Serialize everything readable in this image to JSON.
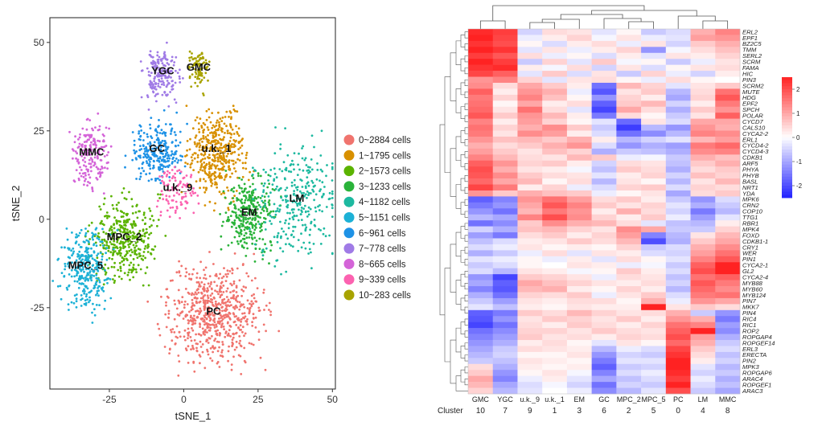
{
  "tsne": {
    "chart_data": {
      "type": "scatter",
      "xlabel": "tSNE_1",
      "ylabel": "tSNE_2",
      "xlim": [
        -45,
        51
      ],
      "ylim": [
        -48,
        57
      ],
      "xticks": [
        -25,
        0,
        25,
        50
      ],
      "yticks": [
        -25,
        0,
        25,
        50
      ],
      "grid": false,
      "legend_position": "right",
      "clusters": [
        {
          "id": 0,
          "legend": "0~2884 cells",
          "label": "PC",
          "color": "#F0746E",
          "center": [
            10,
            -27
          ],
          "spread": [
            14,
            12
          ],
          "n": 640
        },
        {
          "id": 1,
          "legend": "1~1795 cells",
          "label": "u.k._1",
          "color": "#D89000",
          "center": [
            11,
            19
          ],
          "spread": [
            8,
            10
          ],
          "n": 420
        },
        {
          "id": 2,
          "legend": "2~1573 cells",
          "label": "MPC_2",
          "color": "#5BB300",
          "center": [
            -20,
            -6
          ],
          "spread": [
            9,
            10
          ],
          "n": 380
        },
        {
          "id": 3,
          "legend": "3~1233 cells",
          "label": "EM",
          "color": "#2AB33A",
          "center": [
            22,
            1
          ],
          "spread": [
            7,
            9
          ],
          "n": 300
        },
        {
          "id": 4,
          "legend": "4~1182 cells",
          "label": "LM",
          "color": "#1DB9A0",
          "center": [
            38,
            5
          ],
          "spread": [
            12,
            14
          ],
          "n": 300
        },
        {
          "id": 5,
          "legend": "5~1151 cells",
          "label": "MPC_5",
          "color": "#1DB1D6",
          "center": [
            -33,
            -14
          ],
          "spread": [
            7,
            10
          ],
          "n": 300
        },
        {
          "id": 6,
          "legend": "6~961 cells",
          "label": "GC",
          "color": "#1E92E6",
          "center": [
            -9,
            19
          ],
          "spread": [
            8,
            7
          ],
          "n": 250
        },
        {
          "id": 7,
          "legend": "7~778 cells",
          "label": "YGC",
          "color": "#A07BE6",
          "center": [
            -7,
            41
          ],
          "spread": [
            5,
            6
          ],
          "n": 200
        },
        {
          "id": 8,
          "legend": "8~665 cells",
          "label": "MMC",
          "color": "#D464D8",
          "center": [
            -31,
            18
          ],
          "spread": [
            5,
            8
          ],
          "n": 180
        },
        {
          "id": 9,
          "legend": "9~339 cells",
          "label": "u.k._9",
          "color": "#FC62B0",
          "center": [
            -2,
            8
          ],
          "spread": [
            6,
            7
          ],
          "n": 100
        },
        {
          "id": 10,
          "legend": "10~283 cells",
          "label": "GMC",
          "color": "#A8A300",
          "center": [
            5,
            42
          ],
          "spread": [
            3,
            5
          ],
          "n": 90
        }
      ]
    }
  },
  "heatmap": {
    "chart_data": {
      "type": "heatmap",
      "xlabel": "Cluster",
      "columns": [
        "GMC",
        "YGC",
        "u.k._9",
        "u.k._1",
        "EM",
        "GC",
        "MPC_2",
        "MPC_5",
        "PC",
        "LM",
        "MMC"
      ],
      "cluster_ids": [
        "10",
        "7",
        "9",
        "1",
        "3",
        "6",
        "2",
        "5",
        "0",
        "4",
        "8"
      ],
      "color_scale": {
        "min": -2.5,
        "max": 2.5,
        "ticks": [
          2,
          1,
          0,
          -1,
          -2
        ],
        "colors": [
          "#2222EE",
          "#FFFFFF",
          "#EE2222"
        ]
      },
      "rows": [
        "ERL2",
        "EPF1",
        "BZ2C5",
        "TMM",
        "SERL2",
        "SCRM",
        "FAMA",
        "HIC",
        "PIN3",
        "SCRM2",
        "MUTE",
        "HDG",
        "EPF2",
        "SPCH",
        "POLAR",
        "CYCD7",
        "CALS10",
        "CYCA2-2",
        "ERL1",
        "CYCD4-2",
        "CYCD4-3",
        "CDKB1",
        "ARF5",
        "PHYA",
        "PHYB",
        "BASL",
        "NRT1",
        "YDA",
        "MPK6",
        "CRN2",
        "COP10",
        "TTG1",
        "RBR1",
        "MPK4",
        "FOXD",
        "CDKB1-1",
        "CRY1",
        "WER",
        "PIN1",
        "CYCA2-1",
        "GL2",
        "CYCA2-4",
        "MYB88",
        "MYB60",
        "MYB124",
        "PIN7",
        "MKK7",
        "PIN4",
        "RIC4",
        "RIC1",
        "ROP2",
        "ROPGAP4",
        "ROPGEF14",
        "ERL3",
        "ERECTA",
        "PIN2",
        "MPK3",
        "ROPGAP6",
        "ARAC4",
        "ROPGEF1",
        "ARAC3"
      ],
      "values": [
        [
          2.4,
          2.2,
          -0.5,
          0.4,
          0.3,
          -0.3,
          0.1,
          -0.6,
          -0.4,
          0.9,
          1.4
        ],
        [
          2.5,
          2.1,
          -0.2,
          0.2,
          0.5,
          -0.1,
          0.3,
          -0.2,
          -0.3,
          1.1,
          1.2
        ],
        [
          2.3,
          2.0,
          0.1,
          -0.4,
          0.2,
          0.4,
          -0.2,
          0.3,
          -0.5,
          0.6,
          0.9
        ],
        [
          2.6,
          2.3,
          -0.3,
          0.3,
          -0.2,
          0.2,
          0.5,
          -1.2,
          -0.1,
          0.4,
          0.7
        ],
        [
          2.2,
          1.9,
          0.4,
          -0.2,
          0.1,
          -0.4,
          0.2,
          -0.3,
          0.3,
          0.2,
          0.5
        ],
        [
          2.5,
          2.2,
          -0.6,
          0.5,
          -0.3,
          0.6,
          -0.1,
          0.1,
          -0.6,
          -0.2,
          0.3
        ],
        [
          2.3,
          2.4,
          0.2,
          -0.1,
          0.4,
          -0.5,
          0.3,
          -0.4,
          0.1,
          0.3,
          0.4
        ],
        [
          2.1,
          1.8,
          -0.3,
          0.6,
          -0.4,
          0.3,
          -0.6,
          0.5,
          -0.2,
          -0.5,
          0.2
        ],
        [
          1.2,
          1.4,
          0.5,
          -0.3,
          0.3,
          0.4,
          0.1,
          -0.2,
          0.4,
          0.1,
          0.0
        ],
        [
          1.3,
          0.4,
          1.0,
          0.6,
          0.2,
          -1.6,
          0.8,
          0.5,
          -0.3,
          0.3,
          0.6
        ],
        [
          1.8,
          0.2,
          1.2,
          0.9,
          -0.2,
          -1.9,
          0.3,
          0.6,
          -0.8,
          0.4,
          1.6
        ],
        [
          1.5,
          0.5,
          1.4,
          0.7,
          0.1,
          -1.2,
          0.5,
          0.2,
          -1.0,
          0.5,
          1.9
        ],
        [
          1.6,
          0.1,
          1.0,
          0.2,
          0.4,
          -1.8,
          0.6,
          0.8,
          -0.5,
          0.2,
          1.5
        ],
        [
          1.7,
          0.3,
          1.6,
          0.4,
          -0.3,
          -2.1,
          1.0,
          0.4,
          -0.9,
          0.6,
          1.2
        ],
        [
          1.9,
          0.6,
          1.2,
          0.8,
          0.2,
          -1.5,
          0.4,
          0.1,
          -0.6,
          0.3,
          1.8
        ],
        [
          1.4,
          0.2,
          1.1,
          0.5,
          0.1,
          -0.3,
          -1.7,
          0.3,
          -0.4,
          1.0,
          1.0
        ],
        [
          1.6,
          0.5,
          0.9,
          1.3,
          0.6,
          -0.6,
          -2.2,
          -0.8,
          -1.2,
          1.2,
          0.9
        ],
        [
          1.5,
          0.3,
          1.3,
          1.1,
          0.2,
          -0.4,
          -1.6,
          -1.3,
          -0.8,
          1.4,
          1.3
        ],
        [
          1.2,
          0.7,
          0.8,
          0.6,
          0.9,
          0.2,
          -0.8,
          -0.5,
          -0.3,
          0.8,
          1.1
        ],
        [
          0.9,
          0.4,
          0.6,
          0.9,
          1.2,
          -0.4,
          -1.2,
          -0.9,
          -1.1,
          1.5,
          1.7
        ],
        [
          1.1,
          0.6,
          0.3,
          0.7,
          0.5,
          -0.9,
          -0.6,
          -0.7,
          -0.9,
          1.3,
          1.4
        ],
        [
          1.4,
          0.8,
          0.4,
          0.3,
          0.8,
          0.6,
          -0.2,
          -0.1,
          -0.6,
          0.9,
          0.7
        ],
        [
          1.8,
          1.2,
          0.5,
          0.6,
          0.2,
          -0.5,
          0.4,
          0.3,
          -0.7,
          0.6,
          0.9
        ],
        [
          2.0,
          0.9,
          0.3,
          0.2,
          -0.1,
          -0.7,
          0.6,
          0.4,
          -0.9,
          0.4,
          0.6
        ],
        [
          1.9,
          1.3,
          0.6,
          0.4,
          0.3,
          -0.3,
          0.2,
          0.5,
          -0.5,
          0.7,
          0.5
        ],
        [
          1.7,
          1.0,
          0.8,
          0.1,
          0.4,
          -0.8,
          0.3,
          0.1,
          -0.8,
          0.3,
          0.8
        ],
        [
          2.1,
          1.5,
          0.2,
          0.5,
          -0.2,
          -0.4,
          0.5,
          0.6,
          -0.4,
          0.5,
          0.4
        ],
        [
          1.2,
          0.6,
          0.9,
          0.7,
          0.6,
          -0.2,
          0.1,
          0.3,
          -1.0,
          0.4,
          0.6
        ],
        [
          -1.8,
          -1.4,
          1.2,
          1.6,
          1.1,
          0.4,
          0.6,
          0.2,
          -0.6,
          -1.2,
          -0.4
        ],
        [
          -1.5,
          -1.2,
          1.0,
          1.9,
          1.4,
          0.6,
          0.3,
          0.5,
          -0.3,
          -0.9,
          -0.6
        ],
        [
          -1.2,
          -1.6,
          0.8,
          1.5,
          1.2,
          0.2,
          0.9,
          0.4,
          -0.5,
          -1.5,
          -0.8
        ],
        [
          -0.8,
          -1.0,
          1.4,
          2.0,
          1.3,
          0.5,
          0.2,
          0.6,
          -0.2,
          -1.1,
          -0.3
        ],
        [
          -1.6,
          -1.3,
          0.6,
          1.3,
          0.9,
          0.8,
          0.4,
          -0.3,
          -0.7,
          -0.8,
          0.2
        ],
        [
          -0.5,
          -0.9,
          0.7,
          0.8,
          0.5,
          0.3,
          1.3,
          1.0,
          -0.6,
          -0.6,
          0.5
        ],
        [
          -1.1,
          -1.5,
          0.4,
          0.6,
          0.2,
          0.5,
          1.1,
          -1.4,
          -0.8,
          0.3,
          0.8
        ],
        [
          -0.7,
          -0.4,
          0.2,
          0.3,
          0.6,
          0.4,
          0.8,
          -2.0,
          -0.9,
          0.6,
          1.0
        ],
        [
          -0.4,
          -0.2,
          0.3,
          0.1,
          0.2,
          0.1,
          0.5,
          -0.6,
          -0.4,
          0.9,
          1.3
        ],
        [
          -0.9,
          -0.6,
          -0.2,
          0.4,
          -0.3,
          0.3,
          0.2,
          -0.4,
          -0.5,
          1.1,
          1.6
        ],
        [
          -0.3,
          -0.2,
          0.1,
          -0.2,
          0.2,
          -0.3,
          0.4,
          0.1,
          -0.3,
          1.4,
          1.9
        ],
        [
          -0.6,
          -0.4,
          0.1,
          0.0,
          0.3,
          0.2,
          -0.2,
          -0.1,
          -0.6,
          1.8,
          2.7
        ],
        [
          -0.4,
          -0.8,
          0.3,
          0.2,
          -0.1,
          0.1,
          0.6,
          0.2,
          -0.4,
          2.0,
          2.5
        ],
        [
          -1.2,
          -2.1,
          0.6,
          0.5,
          0.3,
          -0.2,
          0.4,
          0.3,
          -0.7,
          1.6,
          1.8
        ],
        [
          -1.0,
          -1.8,
          1.0,
          0.7,
          0.5,
          0.3,
          0.2,
          0.4,
          -0.5,
          1.9,
          1.5
        ],
        [
          -1.4,
          -1.9,
          0.8,
          0.9,
          0.2,
          0.1,
          0.5,
          0.2,
          -0.8,
          1.7,
          1.3
        ],
        [
          -0.9,
          -1.6,
          0.5,
          0.4,
          0.6,
          -0.2,
          0.3,
          0.6,
          -0.4,
          1.5,
          1.6
        ],
        [
          -0.6,
          -1.1,
          0.3,
          0.2,
          0.4,
          0.4,
          0.1,
          0.9,
          -0.2,
          1.2,
          1.0
        ],
        [
          -0.3,
          -0.7,
          0.2,
          0.1,
          0.3,
          0.2,
          0.2,
          2.8,
          0.3,
          0.6,
          0.4
        ],
        [
          -1.8,
          -1.5,
          0.6,
          0.4,
          0.8,
          0.5,
          0.3,
          0.4,
          0.9,
          -0.6,
          -1.2
        ],
        [
          -1.9,
          -1.2,
          0.3,
          0.6,
          0.5,
          0.3,
          0.6,
          0.2,
          1.2,
          0.9,
          -1.5
        ],
        [
          -2.1,
          -1.6,
          0.4,
          0.2,
          0.6,
          0.4,
          0.2,
          0.5,
          1.6,
          1.4,
          -1.1
        ],
        [
          -1.6,
          -1.3,
          0.5,
          0.5,
          0.3,
          0.6,
          0.4,
          0.3,
          1.8,
          2.6,
          -1.3
        ],
        [
          -1.4,
          -1.1,
          0.6,
          0.3,
          0.4,
          0.2,
          0.5,
          0.4,
          2.0,
          1.1,
          -0.9
        ],
        [
          -1.2,
          -0.9,
          0.2,
          0.4,
          0.1,
          -0.3,
          0.3,
          0.1,
          1.7,
          0.9,
          -0.6
        ],
        [
          -1.0,
          -0.6,
          0.4,
          0.3,
          0.2,
          -0.8,
          -0.2,
          -0.4,
          2.1,
          0.6,
          -0.4
        ],
        [
          -0.8,
          -0.5,
          0.1,
          0.1,
          0.3,
          -1.2,
          -0.5,
          -0.6,
          2.3,
          0.4,
          -0.7
        ],
        [
          -0.6,
          -0.7,
          0.3,
          0.2,
          0.1,
          -1.5,
          -0.3,
          -0.3,
          2.5,
          0.2,
          -0.5
        ],
        [
          0.4,
          -0.9,
          0.2,
          0.1,
          0.2,
          -1.8,
          -0.6,
          -0.5,
          2.6,
          -0.3,
          -0.8
        ],
        [
          0.6,
          -1.2,
          0.1,
          0.3,
          -0.1,
          -1.4,
          -0.4,
          -0.2,
          2.4,
          -0.5,
          -0.6
        ],
        [
          1.0,
          -1.4,
          -0.2,
          0.2,
          -0.3,
          -1.0,
          -0.7,
          -0.4,
          2.2,
          -0.2,
          -0.9
        ],
        [
          0.8,
          -1.0,
          -0.4,
          -0.1,
          -0.5,
          -1.6,
          -0.5,
          -0.6,
          2.7,
          -0.4,
          -0.7
        ],
        [
          0.5,
          -0.8,
          -0.3,
          0.0,
          -0.2,
          -1.3,
          -0.8,
          -0.3,
          2.0,
          -0.6,
          -1.0
        ]
      ]
    }
  }
}
